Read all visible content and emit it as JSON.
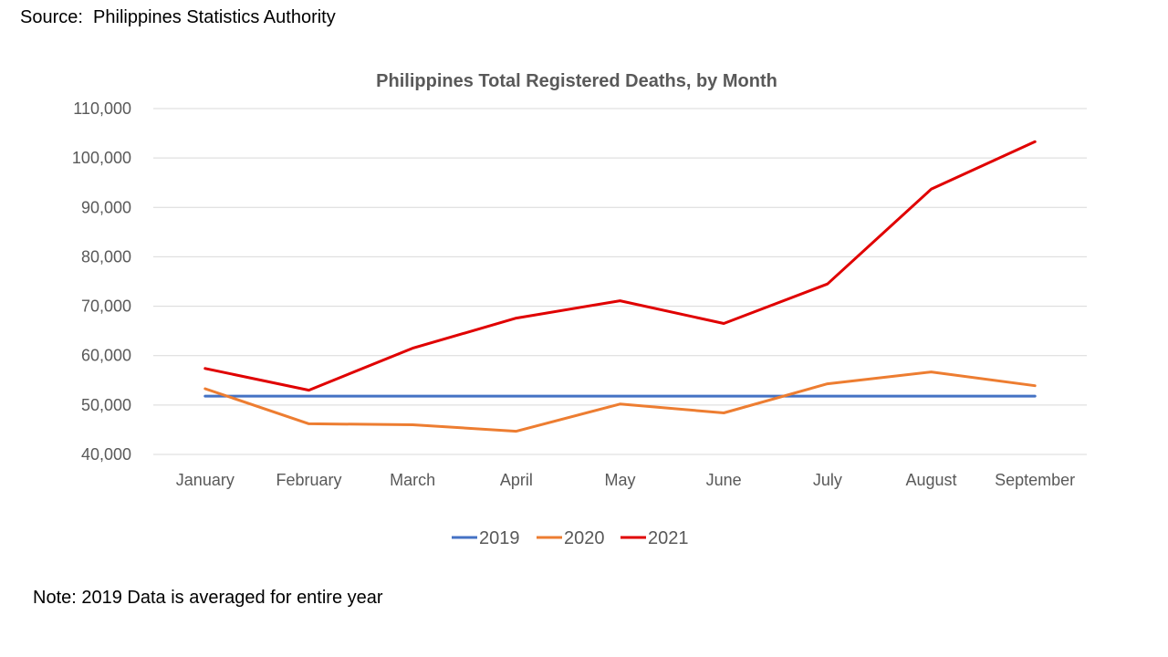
{
  "source_text": "Source:  Philippines Statistics Authority",
  "note_text": "Note: 2019 Data is averaged for entire year",
  "chart_data": {
    "type": "line",
    "title": "Philippines Total Registered Deaths, by Month",
    "xlabel": "",
    "ylabel": "",
    "categories": [
      "January",
      "February",
      "March",
      "April",
      "May",
      "June",
      "July",
      "August",
      "September"
    ],
    "ylim": [
      40000,
      110000
    ],
    "yticks": [
      40000,
      50000,
      60000,
      70000,
      80000,
      90000,
      100000,
      110000
    ],
    "ytick_labels": [
      "40,000",
      "50,000",
      "60,000",
      "70,000",
      "80,000",
      "90,000",
      "100,000",
      "110,000"
    ],
    "grid": true,
    "legend_position": "bottom",
    "series": [
      {
        "name": "2019",
        "color": "#4472c4",
        "values": [
          51800,
          51800,
          51800,
          51800,
          51800,
          51800,
          51800,
          51800,
          51800
        ]
      },
      {
        "name": "2020",
        "color": "#ed7d31",
        "values": [
          53300,
          46200,
          46000,
          44700,
          50200,
          48400,
          54300,
          56700,
          53900
        ]
      },
      {
        "name": "2021",
        "color": "#e00000",
        "values": [
          57400,
          53000,
          61500,
          67600,
          71100,
          66500,
          74500,
          93700,
          103300
        ]
      }
    ]
  }
}
